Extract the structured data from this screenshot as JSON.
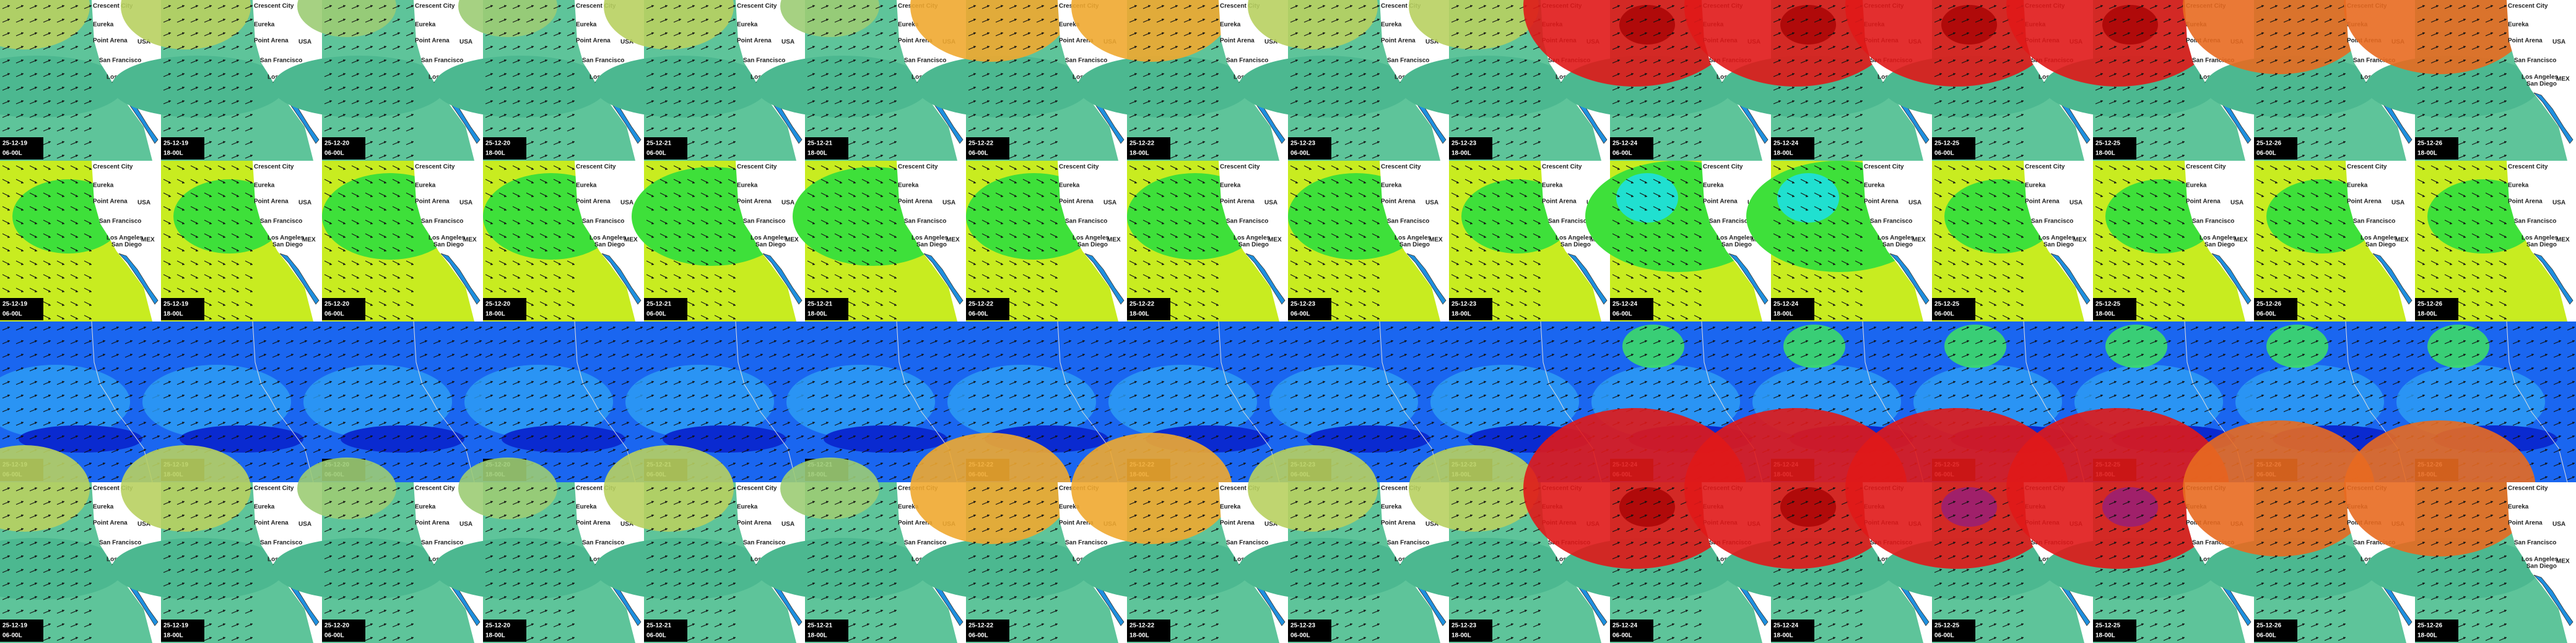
{
  "columns": [
    {
      "date": "25-12-19",
      "time": "06-00L"
    },
    {
      "date": "25-12-19",
      "time": "18-00L"
    },
    {
      "date": "25-12-20",
      "time": "06-00L"
    },
    {
      "date": "25-12-20",
      "time": "18-00L"
    },
    {
      "date": "25-12-21",
      "time": "06-00L"
    },
    {
      "date": "25-12-21",
      "time": "18-00L"
    },
    {
      "date": "25-12-22",
      "time": "06-00L"
    },
    {
      "date": "25-12-22",
      "time": "18-00L"
    },
    {
      "date": "25-12-23",
      "time": "06-00L"
    },
    {
      "date": "25-12-23",
      "time": "18-00L"
    },
    {
      "date": "25-12-24",
      "time": "06-00L"
    },
    {
      "date": "25-12-24",
      "time": "18-00L"
    },
    {
      "date": "25-12-25",
      "time": "06-00L"
    },
    {
      "date": "25-12-25",
      "time": "18-00L"
    },
    {
      "date": "25-12-26",
      "time": "06-00L"
    },
    {
      "date": "25-12-26",
      "time": "18-00L"
    }
  ],
  "map_labels": [
    "Crescent City",
    "Eureka",
    "Point Arena",
    "San Francisco",
    "Los Angeles",
    "San Diego",
    "USA",
    "MEX"
  ]
}
